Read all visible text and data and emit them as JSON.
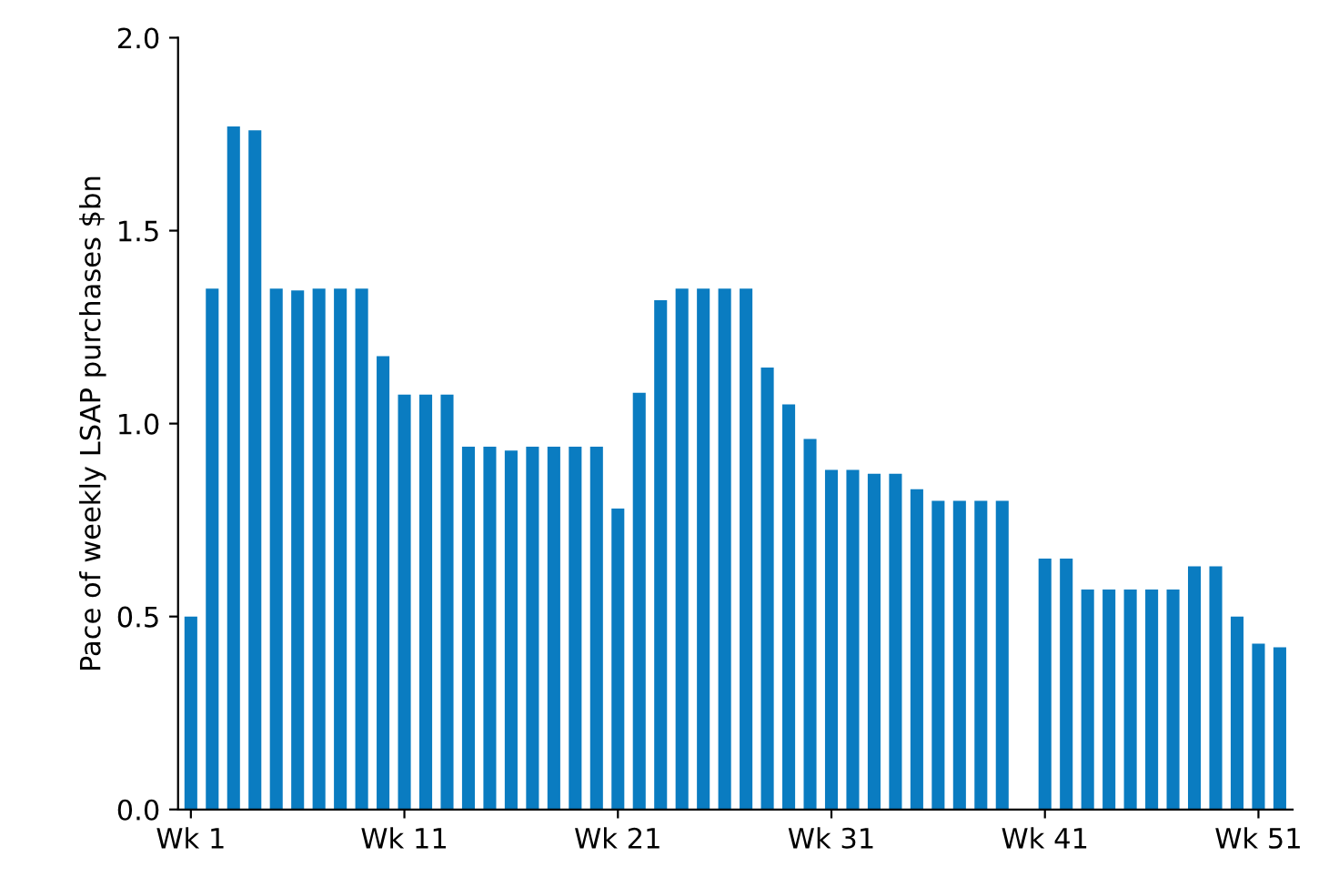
{
  "chart_data": {
    "type": "bar",
    "ylabel": "Pace of weekly LSAP purchases $bn",
    "categories": [
      "Wk 1",
      null,
      null,
      null,
      null,
      null,
      null,
      null,
      null,
      null,
      "Wk 11",
      null,
      null,
      null,
      null,
      null,
      null,
      null,
      null,
      null,
      "Wk 21",
      null,
      null,
      null,
      null,
      null,
      null,
      null,
      null,
      null,
      "Wk 31",
      null,
      null,
      null,
      null,
      null,
      null,
      null,
      null,
      null,
      "Wk 41",
      null,
      null,
      null,
      null,
      null,
      null,
      null,
      null,
      null,
      "Wk 51",
      null
    ],
    "values": [
      0.5,
      1.35,
      1.77,
      1.76,
      1.35,
      1.345,
      1.35,
      1.35,
      1.35,
      1.175,
      1.075,
      1.075,
      1.075,
      0.94,
      0.94,
      0.93,
      0.94,
      0.94,
      0.94,
      0.94,
      0.78,
      1.08,
      1.32,
      1.35,
      1.35,
      1.35,
      1.35,
      1.145,
      1.05,
      0.96,
      0.88,
      0.88,
      0.87,
      0.87,
      0.83,
      0.8,
      0.8,
      0.8,
      0.8,
      null,
      0.65,
      0.65,
      0.57,
      0.57,
      0.57,
      0.57,
      0.57,
      0.63,
      0.63,
      0.5,
      0.43,
      0.42
    ],
    "color": "#0a7cc1",
    "ylim": [
      0,
      2.0
    ],
    "yticks": [
      {
        "value": 0,
        "label": "0.0"
      },
      0.5,
      {
        "value": 1,
        "label": "1.0"
      },
      1.5,
      {
        "value": 2,
        "label": "2.0"
      }
    ],
    "grid": false
  }
}
